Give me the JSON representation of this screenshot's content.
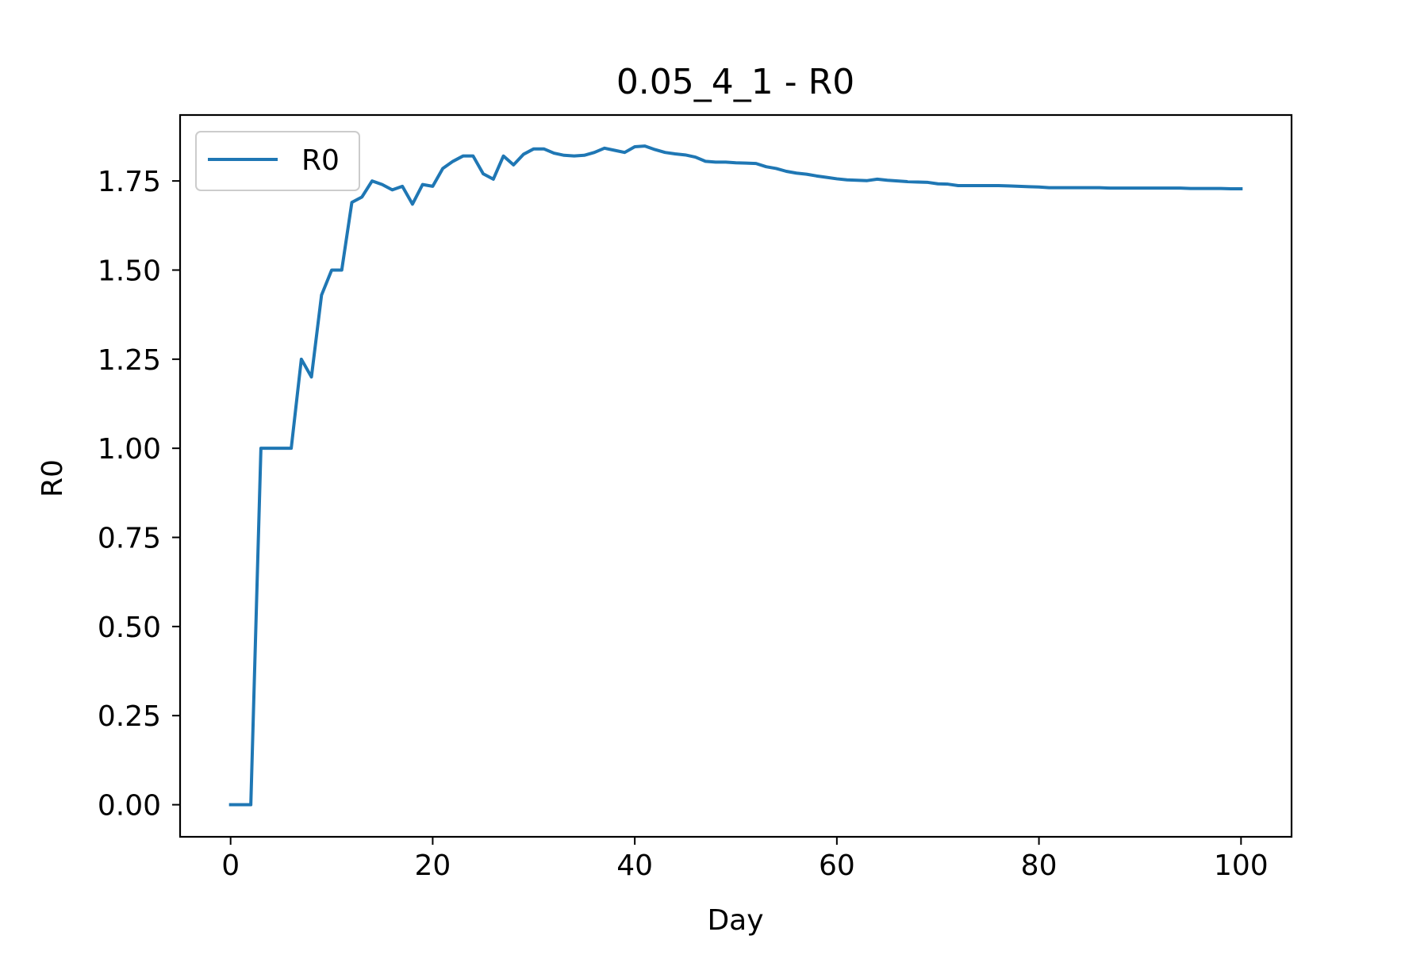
{
  "chart_data": {
    "type": "line",
    "title": "0.05_4_1 - R0",
    "xlabel": "Day",
    "ylabel": "R0",
    "xlim": [
      -5,
      105
    ],
    "ylim": [
      -0.09,
      1.935
    ],
    "x_ticks": [
      0,
      20,
      40,
      60,
      80,
      100
    ],
    "x_tick_labels": [
      "0",
      "20",
      "40",
      "60",
      "80",
      "100"
    ],
    "y_ticks": [
      0.0,
      0.25,
      0.5,
      0.75,
      1.0,
      1.25,
      1.5,
      1.75
    ],
    "y_tick_labels": [
      "0.00",
      "0.25",
      "0.50",
      "0.75",
      "1.00",
      "1.25",
      "1.50",
      "1.75"
    ],
    "grid": false,
    "legend": {
      "position": "top-left",
      "entries": [
        "R0"
      ]
    },
    "series": [
      {
        "name": "R0",
        "color": "#1f77b4",
        "x": [
          0,
          1,
          2,
          3,
          4,
          5,
          6,
          7,
          8,
          9,
          10,
          11,
          12,
          13,
          14,
          15,
          16,
          17,
          18,
          19,
          20,
          21,
          22,
          23,
          24,
          25,
          26,
          27,
          28,
          29,
          30,
          31,
          32,
          33,
          34,
          35,
          36,
          37,
          38,
          39,
          40,
          41,
          42,
          43,
          44,
          45,
          46,
          47,
          48,
          49,
          50,
          51,
          52,
          53,
          54,
          55,
          56,
          57,
          58,
          59,
          60,
          61,
          62,
          63,
          64,
          65,
          66,
          67,
          68,
          69,
          70,
          71,
          72,
          73,
          74,
          75,
          76,
          77,
          78,
          79,
          80,
          81,
          82,
          83,
          84,
          85,
          86,
          87,
          88,
          89,
          90,
          91,
          92,
          93,
          94,
          95,
          96,
          97,
          98,
          99,
          100
        ],
        "values": [
          0.0,
          0.0,
          0.0,
          1.0,
          1.0,
          1.0,
          1.0,
          1.25,
          1.2,
          1.43,
          1.5,
          1.5,
          1.69,
          1.705,
          1.75,
          1.74,
          1.725,
          1.735,
          1.685,
          1.74,
          1.735,
          1.785,
          1.805,
          1.82,
          1.82,
          1.77,
          1.755,
          1.82,
          1.795,
          1.825,
          1.84,
          1.84,
          1.828,
          1.822,
          1.82,
          1.822,
          1.83,
          1.842,
          1.836,
          1.83,
          1.846,
          1.848,
          1.838,
          1.83,
          1.826,
          1.823,
          1.817,
          1.805,
          1.803,
          1.803,
          1.801,
          1.8,
          1.799,
          1.79,
          1.785,
          1.777,
          1.772,
          1.769,
          1.764,
          1.76,
          1.756,
          1.753,
          1.752,
          1.751,
          1.755,
          1.752,
          1.75,
          1.748,
          1.747,
          1.746,
          1.742,
          1.741,
          1.737,
          1.737,
          1.737,
          1.737,
          1.737,
          1.736,
          1.735,
          1.734,
          1.733,
          1.731,
          1.731,
          1.731,
          1.731,
          1.731,
          1.731,
          1.73,
          1.73,
          1.73,
          1.73,
          1.73,
          1.73,
          1.73,
          1.73,
          1.729,
          1.729,
          1.729,
          1.729,
          1.728,
          1.728
        ]
      }
    ]
  }
}
